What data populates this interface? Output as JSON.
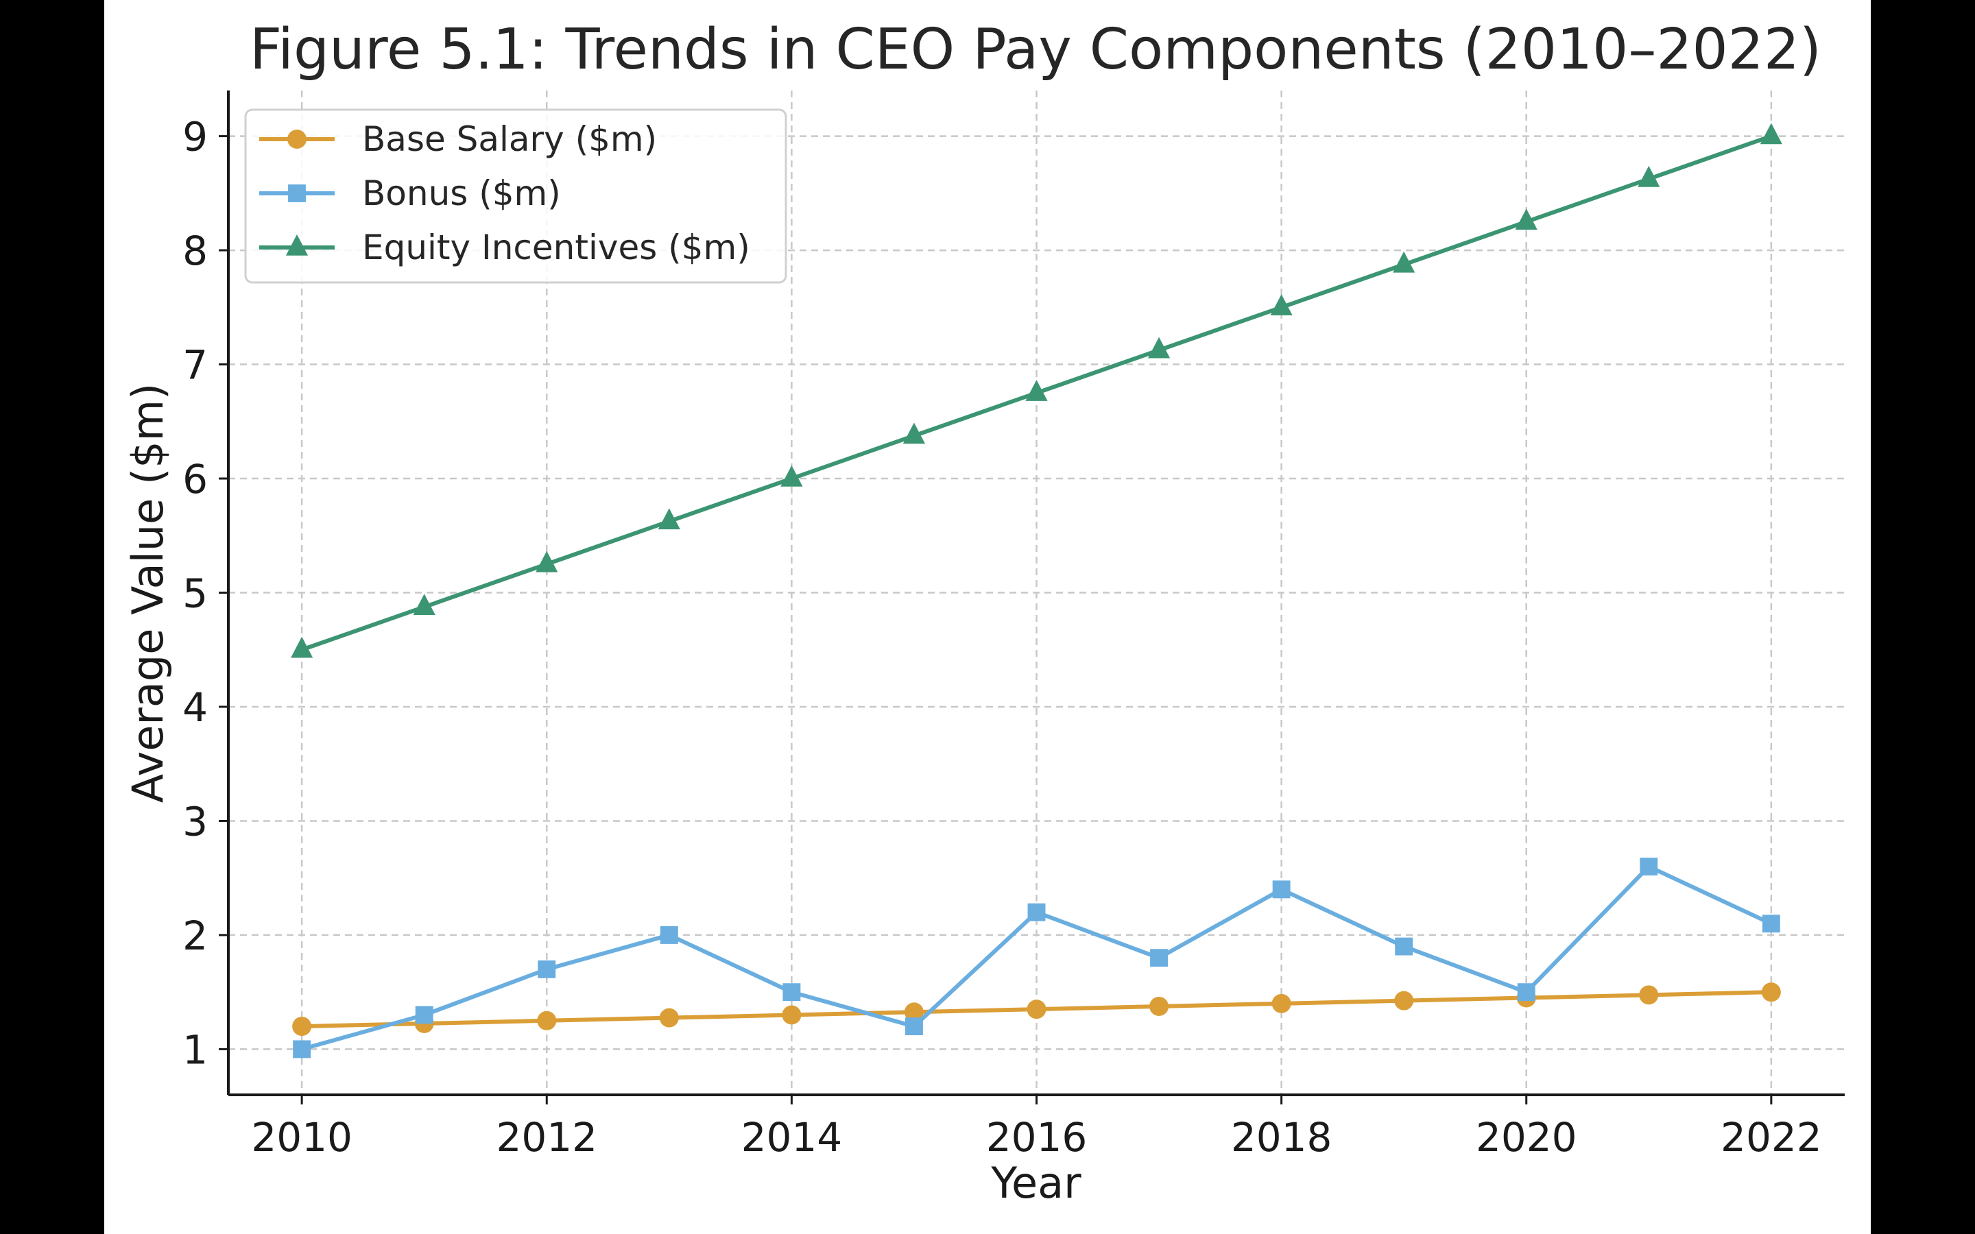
{
  "chart_data": {
    "type": "line",
    "title": "Figure 5.1: Trends in CEO Pay Components (2010–2022)",
    "xlabel": "Year",
    "ylabel": "Average Value ($m)",
    "x": [
      2010,
      2011,
      2012,
      2013,
      2014,
      2015,
      2016,
      2017,
      2018,
      2019,
      2020,
      2021,
      2022
    ],
    "xticks": [
      2010,
      2012,
      2014,
      2016,
      2018,
      2020,
      2022
    ],
    "yticks": [
      1,
      2,
      3,
      4,
      5,
      6,
      7,
      8,
      9
    ],
    "xlim": [
      2009.4,
      2022.6
    ],
    "ylim": [
      0.6,
      9.4
    ],
    "grid": true,
    "legend_position": "top-left",
    "series": [
      {
        "name": "Base Salary ($m)",
        "color": "#DB9E36",
        "marker": "circle",
        "values": [
          1.2,
          1.225,
          1.25,
          1.275,
          1.3,
          1.325,
          1.35,
          1.375,
          1.4,
          1.425,
          1.45,
          1.475,
          1.5
        ]
      },
      {
        "name": "Bonus ($m)",
        "color": "#6AAEE0",
        "marker": "square",
        "values": [
          1.0,
          1.3,
          1.7,
          2.0,
          1.5,
          1.2,
          2.2,
          1.8,
          2.4,
          1.9,
          1.5,
          2.6,
          2.1
        ]
      },
      {
        "name": "Equity Incentives ($m)",
        "color": "#3C9572",
        "marker": "triangle",
        "values": [
          4.5,
          4.875,
          5.25,
          5.625,
          6.0,
          6.375,
          6.75,
          7.125,
          7.5,
          7.875,
          8.25,
          8.625,
          9.0
        ]
      }
    ]
  }
}
